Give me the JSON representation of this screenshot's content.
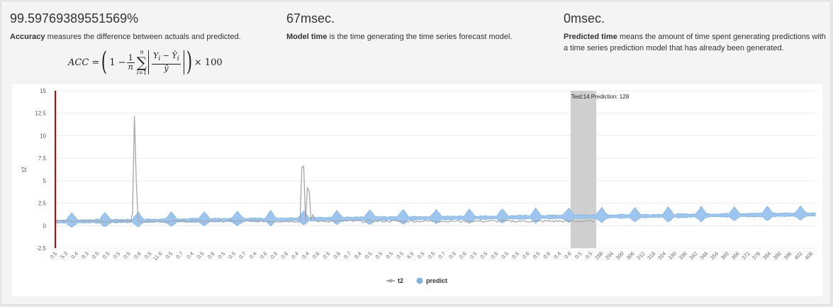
{
  "metrics": {
    "accuracy": {
      "value": "99.59769389551569%",
      "term": "Accuracy",
      "desc": " measures the difference between actuals and predicted."
    },
    "model_time": {
      "value": "67msec.",
      "term": "Model time",
      "desc": " is the time generating the time series forecast model."
    },
    "predicted_time": {
      "value": "0msec.",
      "term": "Predicted time",
      "desc": " means the amount of time spent generating predictions with a time series prediction model that has already been generated."
    }
  },
  "formula": {
    "lhs": "ACC =",
    "times": "× 100"
  },
  "colors": {
    "actual": "#a6a6a6",
    "predict": "#7db4e8",
    "predict_fill": "#9cc6ef",
    "cursor": "#cc0000",
    "band": "#cfcfcf"
  },
  "chart_data": {
    "type": "area",
    "ylabel": "t2",
    "ylim": [
      -2.5,
      15
    ],
    "yticks": [
      "15",
      "12.5",
      "10",
      "7.5",
      "5",
      "2.5",
      "0",
      "-2.5"
    ],
    "xticks": [
      "0.5",
      "5.3",
      "0.4",
      "0.3",
      "0.5",
      "0.5",
      "0.5",
      "0.5",
      "0.6",
      "0.5",
      "11.6",
      "0.5",
      "0.7",
      "0.4",
      "0.5",
      "0.6",
      "0.5",
      "0.5",
      "0.7",
      "0.4",
      "0.6",
      "0.5",
      "0.6",
      "0.4",
      "0.4",
      "0.6",
      "0.5",
      "0.6",
      "0.7",
      "0.4",
      "0.5",
      "0.5",
      "0.5",
      "0.5",
      "6.5",
      "0.5",
      "0.5",
      "0.7",
      "0.5",
      "0.6",
      "0.5",
      "0.5",
      "0.5",
      "0.5",
      "0.5",
      "0.6",
      "0.5",
      "0.6",
      "0.4",
      "0.6",
      "0.5",
      "0.5",
      "288",
      "294",
      "300",
      "306",
      "312",
      "318",
      "324",
      "330",
      "336",
      "342",
      "348",
      "354",
      "360",
      "366",
      "372",
      "378",
      "384",
      "390",
      "396",
      "402",
      "408"
    ],
    "band_label": "Test:14  Prediction: 128",
    "legend": [
      {
        "name": "t2",
        "symbol": "line"
      },
      {
        "name": "predict",
        "symbol": "circle"
      }
    ],
    "series_actual": {
      "name": "t2",
      "baseline": 0.5,
      "length": 294,
      "spikes": [
        {
          "index": 42,
          "value": 1.5
        },
        {
          "index": 43,
          "value": 12.2
        },
        {
          "index": 44,
          "value": 5.0
        },
        {
          "index": 45,
          "value": 0.5
        },
        {
          "index": 134,
          "value": 6.5
        },
        {
          "index": 135,
          "value": 6.6
        },
        {
          "index": 136,
          "value": 0.5
        },
        {
          "index": 137,
          "value": 4.2
        },
        {
          "index": 138,
          "value": 3.8
        },
        {
          "index": 140,
          "value": 1.2
        },
        {
          "index": 141,
          "value": 0.8
        }
      ]
    },
    "series_predict": {
      "name": "predict",
      "length": 414,
      "trend_start": 0.45,
      "trend_end": 1.25,
      "bump_every": 18,
      "bump_height": 0.8,
      "test_start": 280,
      "test_end": 294
    }
  }
}
